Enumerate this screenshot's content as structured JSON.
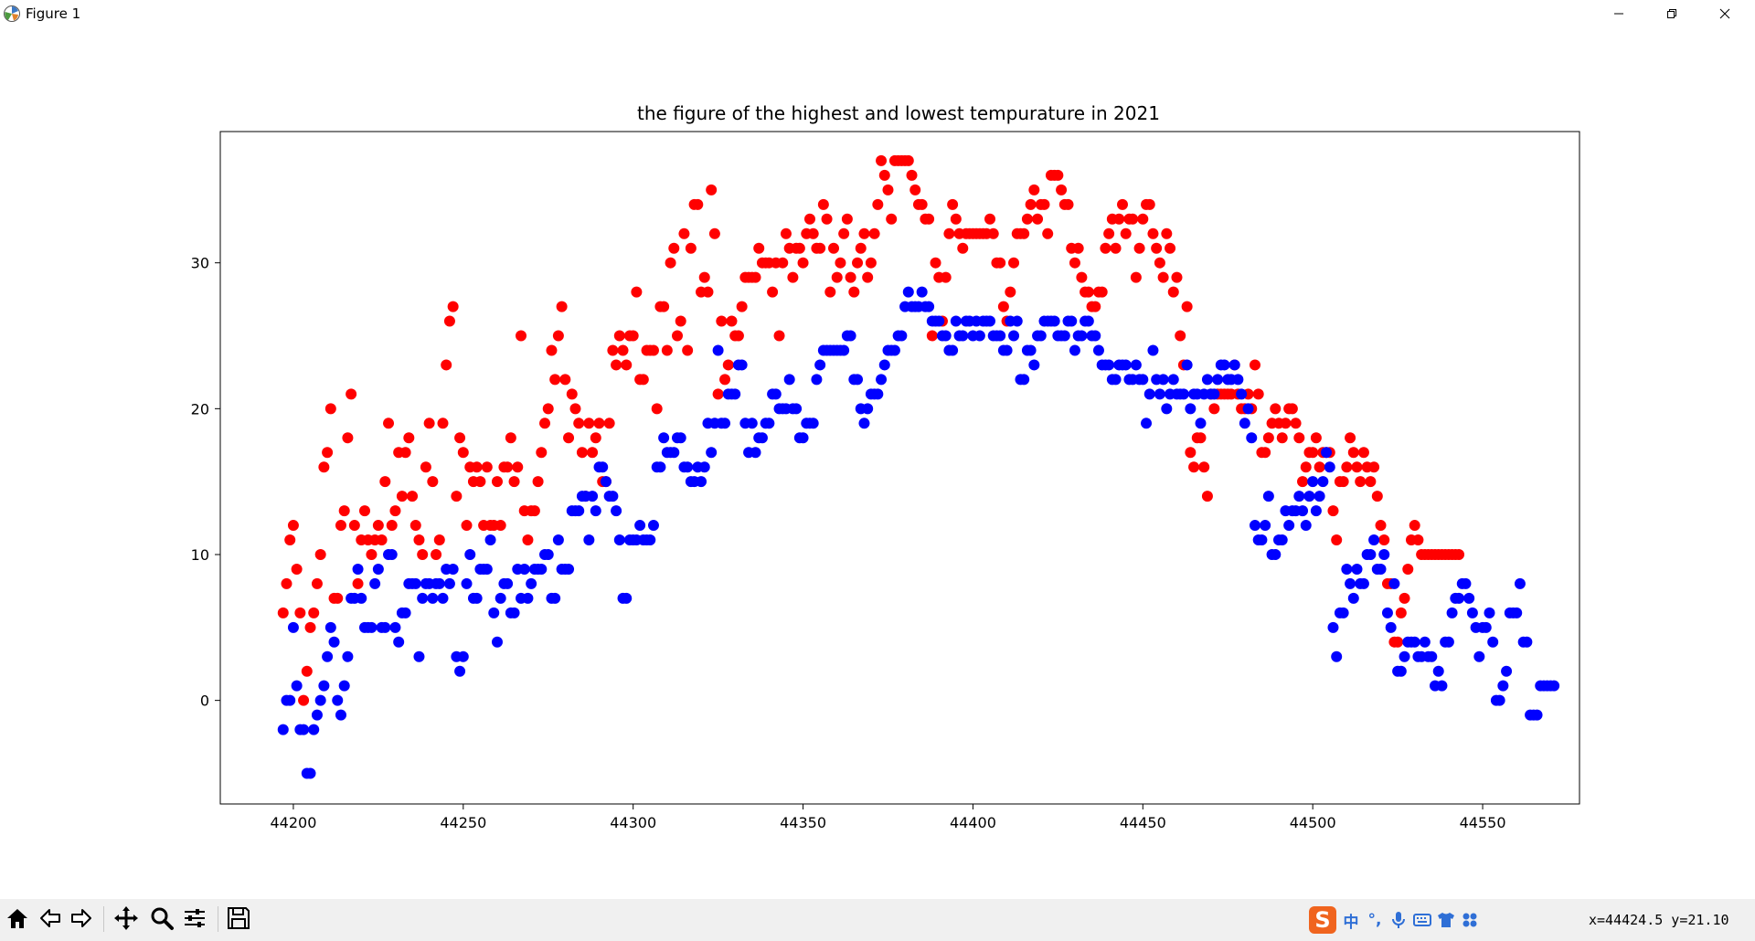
{
  "window": {
    "title": "Figure 1",
    "app_icon": "matplotlib-icon",
    "controls": [
      "minimize-icon",
      "restore-icon",
      "close-icon"
    ]
  },
  "toolbar": {
    "buttons": [
      "home-icon",
      "back-arrow-icon",
      "forward-arrow-icon",
      "pan-icon",
      "zoom-icon",
      "configure-subplots-icon",
      "save-icon"
    ]
  },
  "ime": {
    "logo": "S",
    "items": [
      "中",
      "°,",
      "microphone-icon",
      "keyboard-icon",
      "shirt-icon",
      "grid-icon"
    ]
  },
  "status": {
    "coordinates": "x=44424.5 y=21.10"
  },
  "chart_data": {
    "type": "scatter",
    "title": "the figure of the highest and lowest tempurature in 2021",
    "xlabel": "",
    "ylabel": "",
    "xlim": [
      44178.5,
      44578.5
    ],
    "ylim": [
      -7.1,
      39
    ],
    "grid": false,
    "x_ticks": [
      44200,
      44250,
      44300,
      44350,
      44400,
      44450,
      44500,
      44550
    ],
    "y_ticks": [
      0,
      10,
      20,
      30
    ],
    "series": [
      {
        "color": "#ff0000",
        "x0": 44197,
        "values": [
          6,
          8,
          11,
          12,
          9,
          6,
          0,
          2,
          5,
          6,
          8,
          10,
          16,
          17,
          20,
          7,
          7,
          12,
          13,
          18,
          21,
          12,
          8,
          11,
          13,
          11,
          10,
          11,
          12,
          11,
          15,
          19,
          12,
          13,
          17,
          14,
          17,
          18,
          14,
          12,
          11,
          10,
          16,
          19,
          15,
          10,
          11,
          19,
          23,
          26,
          27,
          14,
          18,
          17,
          12,
          16,
          15,
          16,
          15,
          12,
          16,
          12,
          12,
          15,
          12,
          16,
          16,
          18,
          15,
          16,
          25,
          13,
          11,
          13,
          13,
          15,
          17,
          19,
          20,
          24,
          22,
          25,
          27,
          22,
          18,
          21,
          20,
          19,
          17,
          14,
          19,
          17,
          18,
          19,
          15,
          15,
          19,
          24,
          23,
          25,
          24,
          23,
          25,
          25,
          28,
          22,
          22,
          24,
          24,
          24,
          20,
          27,
          27,
          24,
          30,
          31,
          25,
          26,
          32,
          24,
          31,
          34,
          34,
          28,
          29,
          28,
          35,
          32,
          21,
          26,
          22,
          23,
          26,
          25,
          25,
          27,
          29,
          29,
          29,
          29,
          31,
          30,
          30,
          30,
          28,
          30,
          25,
          30,
          32,
          31,
          29,
          31,
          31,
          30,
          32,
          33,
          32,
          31,
          31,
          34,
          33,
          28,
          31,
          29,
          30,
          32,
          33,
          29,
          28,
          30,
          31,
          32,
          29,
          30,
          32,
          34,
          37,
          36,
          35,
          33,
          37,
          37,
          37,
          37,
          37,
          36,
          35,
          34,
          34,
          33,
          33,
          25,
          30,
          29,
          26,
          29,
          32,
          34,
          33,
          32,
          31,
          32,
          32,
          32,
          32,
          32,
          32,
          32,
          33,
          32,
          30,
          30,
          27,
          26,
          28,
          30,
          32,
          32,
          32,
          33,
          34,
          35,
          33,
          34,
          34,
          32,
          36,
          36,
          36,
          35,
          34,
          34,
          31,
          30,
          31,
          29,
          28,
          28,
          27,
          27,
          28,
          28,
          31,
          32,
          33,
          31,
          33,
          34,
          32,
          33,
          33,
          29,
          31,
          33,
          34,
          34,
          32,
          31,
          30,
          29,
          32,
          31,
          28,
          29,
          25,
          23,
          27,
          17,
          16,
          18,
          18,
          16,
          14,
          21,
          20,
          21,
          21,
          21,
          21,
          21,
          23,
          21,
          20,
          20,
          21,
          20,
          23,
          21,
          17,
          17,
          18,
          19,
          20,
          19,
          18,
          19,
          20,
          20,
          19,
          18,
          15,
          16,
          17,
          17,
          18,
          16,
          17,
          17,
          17,
          13,
          11,
          15,
          15,
          16,
          18,
          17,
          16,
          15,
          17,
          16,
          15,
          16,
          14,
          12,
          11,
          8,
          8,
          4,
          4,
          6,
          7,
          9,
          11,
          12,
          11,
          10,
          10,
          10,
          10,
          10,
          10,
          10,
          10,
          10,
          10,
          10,
          10
        ]
      },
      {
        "color": "#0000ff",
        "x0": 44197,
        "values": [
          -2,
          0,
          0,
          5,
          1,
          -2,
          -2,
          -5,
          -5,
          -2,
          -1,
          0,
          1,
          3,
          5,
          4,
          0,
          -1,
          1,
          3,
          7,
          7,
          9,
          7,
          5,
          5,
          5,
          8,
          9,
          5,
          5,
          10,
          10,
          5,
          4,
          6,
          6,
          8,
          8,
          8,
          3,
          7,
          8,
          8,
          7,
          8,
          8,
          7,
          9,
          8,
          9,
          3,
          2,
          3,
          8,
          10,
          7,
          7,
          9,
          9,
          9,
          11,
          6,
          4,
          7,
          8,
          8,
          6,
          6,
          9,
          7,
          9,
          7,
          8,
          9,
          9,
          9,
          10,
          10,
          7,
          7,
          11,
          9,
          9,
          9,
          13,
          13,
          13,
          14,
          14,
          11,
          14,
          13,
          16,
          16,
          15,
          14,
          14,
          13,
          11,
          7,
          7,
          11,
          11,
          11,
          12,
          11,
          11,
          11,
          12,
          16,
          16,
          18,
          17,
          17,
          17,
          18,
          18,
          16,
          16,
          15,
          15,
          16,
          15,
          16,
          19,
          17,
          19,
          24,
          19,
          19,
          21,
          21,
          21,
          23,
          23,
          19,
          17,
          19,
          17,
          18,
          18,
          19,
          19,
          21,
          21,
          20,
          20,
          20,
          22,
          20,
          20,
          18,
          18,
          19,
          19,
          19,
          22,
          23,
          24,
          24,
          24,
          24,
          24,
          24,
          24,
          25,
          25,
          22,
          22,
          20,
          19,
          20,
          21,
          21,
          21,
          22,
          23,
          24,
          24,
          24,
          25,
          25,
          27,
          28,
          27,
          27,
          27,
          28,
          27,
          27,
          26,
          26,
          26,
          25,
          25,
          24,
          24,
          26,
          25,
          25,
          26,
          26,
          25,
          26,
          25,
          26,
          26,
          26,
          25,
          25,
          25,
          24,
          24,
          26,
          25,
          26,
          22,
          22,
          24,
          24,
          23,
          25,
          25,
          26,
          26,
          26,
          26,
          25,
          25,
          25,
          26,
          26,
          24,
          25,
          25,
          26,
          26,
          25,
          25,
          24,
          23,
          23,
          23,
          22,
          22,
          23,
          23,
          23,
          22,
          22,
          23,
          22,
          22,
          19,
          21,
          24,
          22,
          21,
          22,
          20,
          21,
          22,
          21,
          21,
          21,
          23,
          20,
          21,
          21,
          19,
          21,
          22,
          21,
          21,
          22,
          23,
          23,
          22,
          22,
          23,
          22,
          21,
          19,
          20,
          18,
          12,
          11,
          11,
          12,
          14,
          10,
          10,
          11,
          11,
          13,
          12,
          13,
          13,
          14,
          13,
          12,
          14,
          15,
          13,
          14,
          15,
          17,
          16,
          5,
          3,
          6,
          6,
          9,
          8,
          7,
          9,
          8,
          8,
          10,
          10,
          11,
          9,
          9,
          10,
          6,
          5,
          8,
          2,
          2,
          3,
          4,
          4,
          4,
          3,
          3,
          4,
          3,
          3,
          1,
          2,
          1,
          4,
          4,
          6,
          7,
          7,
          8,
          8,
          7,
          6,
          5,
          3,
          5,
          5,
          6,
          4,
          0,
          0,
          1,
          2,
          6,
          6,
          6,
          8,
          4,
          4,
          -1,
          -1,
          -1,
          1,
          1,
          1,
          1,
          1
        ]
      }
    ]
  }
}
